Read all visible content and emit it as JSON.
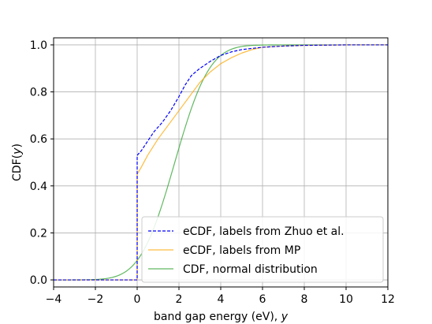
{
  "chart_data": {
    "type": "line",
    "xlabel": "band gap energy (eV), ",
    "xlabel_var": "y",
    "ylabel": "CDF(",
    "ylabel_var": "y",
    "ylabel_close": ")",
    "xlim": [
      -4,
      12
    ],
    "ylim": [
      -0.03,
      1.03
    ],
    "xticks": [
      -4,
      -2,
      0,
      2,
      4,
      6,
      8,
      10,
      12
    ],
    "xtick_labels": [
      "−4",
      "−2",
      "0",
      "2",
      "4",
      "6",
      "8",
      "10",
      "12"
    ],
    "yticks": [
      0.0,
      0.2,
      0.4,
      0.6,
      0.8,
      1.0
    ],
    "ytick_labels": [
      "0.0",
      "0.2",
      "0.4",
      "0.6",
      "0.8",
      "1.0"
    ],
    "grid": true,
    "legend_position": "lower-right",
    "series": [
      {
        "name": "eCDF, labels from Zhuo et al.",
        "color": "#0000ff",
        "style": "dashed",
        "x": [
          -4,
          0,
          0,
          0.05,
          0.2,
          0.5,
          0.8,
          1.2,
          1.6,
          2.0,
          2.3,
          2.6,
          3.0,
          3.5,
          4.0,
          4.5,
          5.0,
          5.5,
          6.0,
          7.0,
          8.0,
          10.0,
          12.0
        ],
        "y": [
          0.0,
          0.0,
          0.53,
          0.535,
          0.55,
          0.59,
          0.63,
          0.67,
          0.72,
          0.78,
          0.83,
          0.87,
          0.9,
          0.93,
          0.955,
          0.97,
          0.98,
          0.985,
          0.99,
          0.995,
          0.998,
          1.0,
          1.0
        ]
      },
      {
        "name": "eCDF, labels from MP",
        "color": "#ffa500",
        "style": "solid",
        "x": [
          -4,
          0,
          0,
          0.2,
          0.5,
          1.0,
          1.5,
          2.0,
          2.5,
          3.0,
          3.5,
          4.0,
          4.5,
          5.0,
          5.5,
          6.0,
          7.0,
          8.0,
          10.0,
          12.0
        ],
        "y": [
          0.0,
          0.0,
          0.45,
          0.48,
          0.53,
          0.6,
          0.66,
          0.72,
          0.78,
          0.84,
          0.885,
          0.92,
          0.945,
          0.965,
          0.98,
          0.99,
          0.995,
          0.998,
          1.0,
          1.0
        ]
      },
      {
        "name": "CDF, normal distribution",
        "color": "#2ca02c",
        "style": "solid",
        "mean": 1.8,
        "std": 1.3,
        "x_from": -4,
        "x_to": 12
      }
    ]
  }
}
